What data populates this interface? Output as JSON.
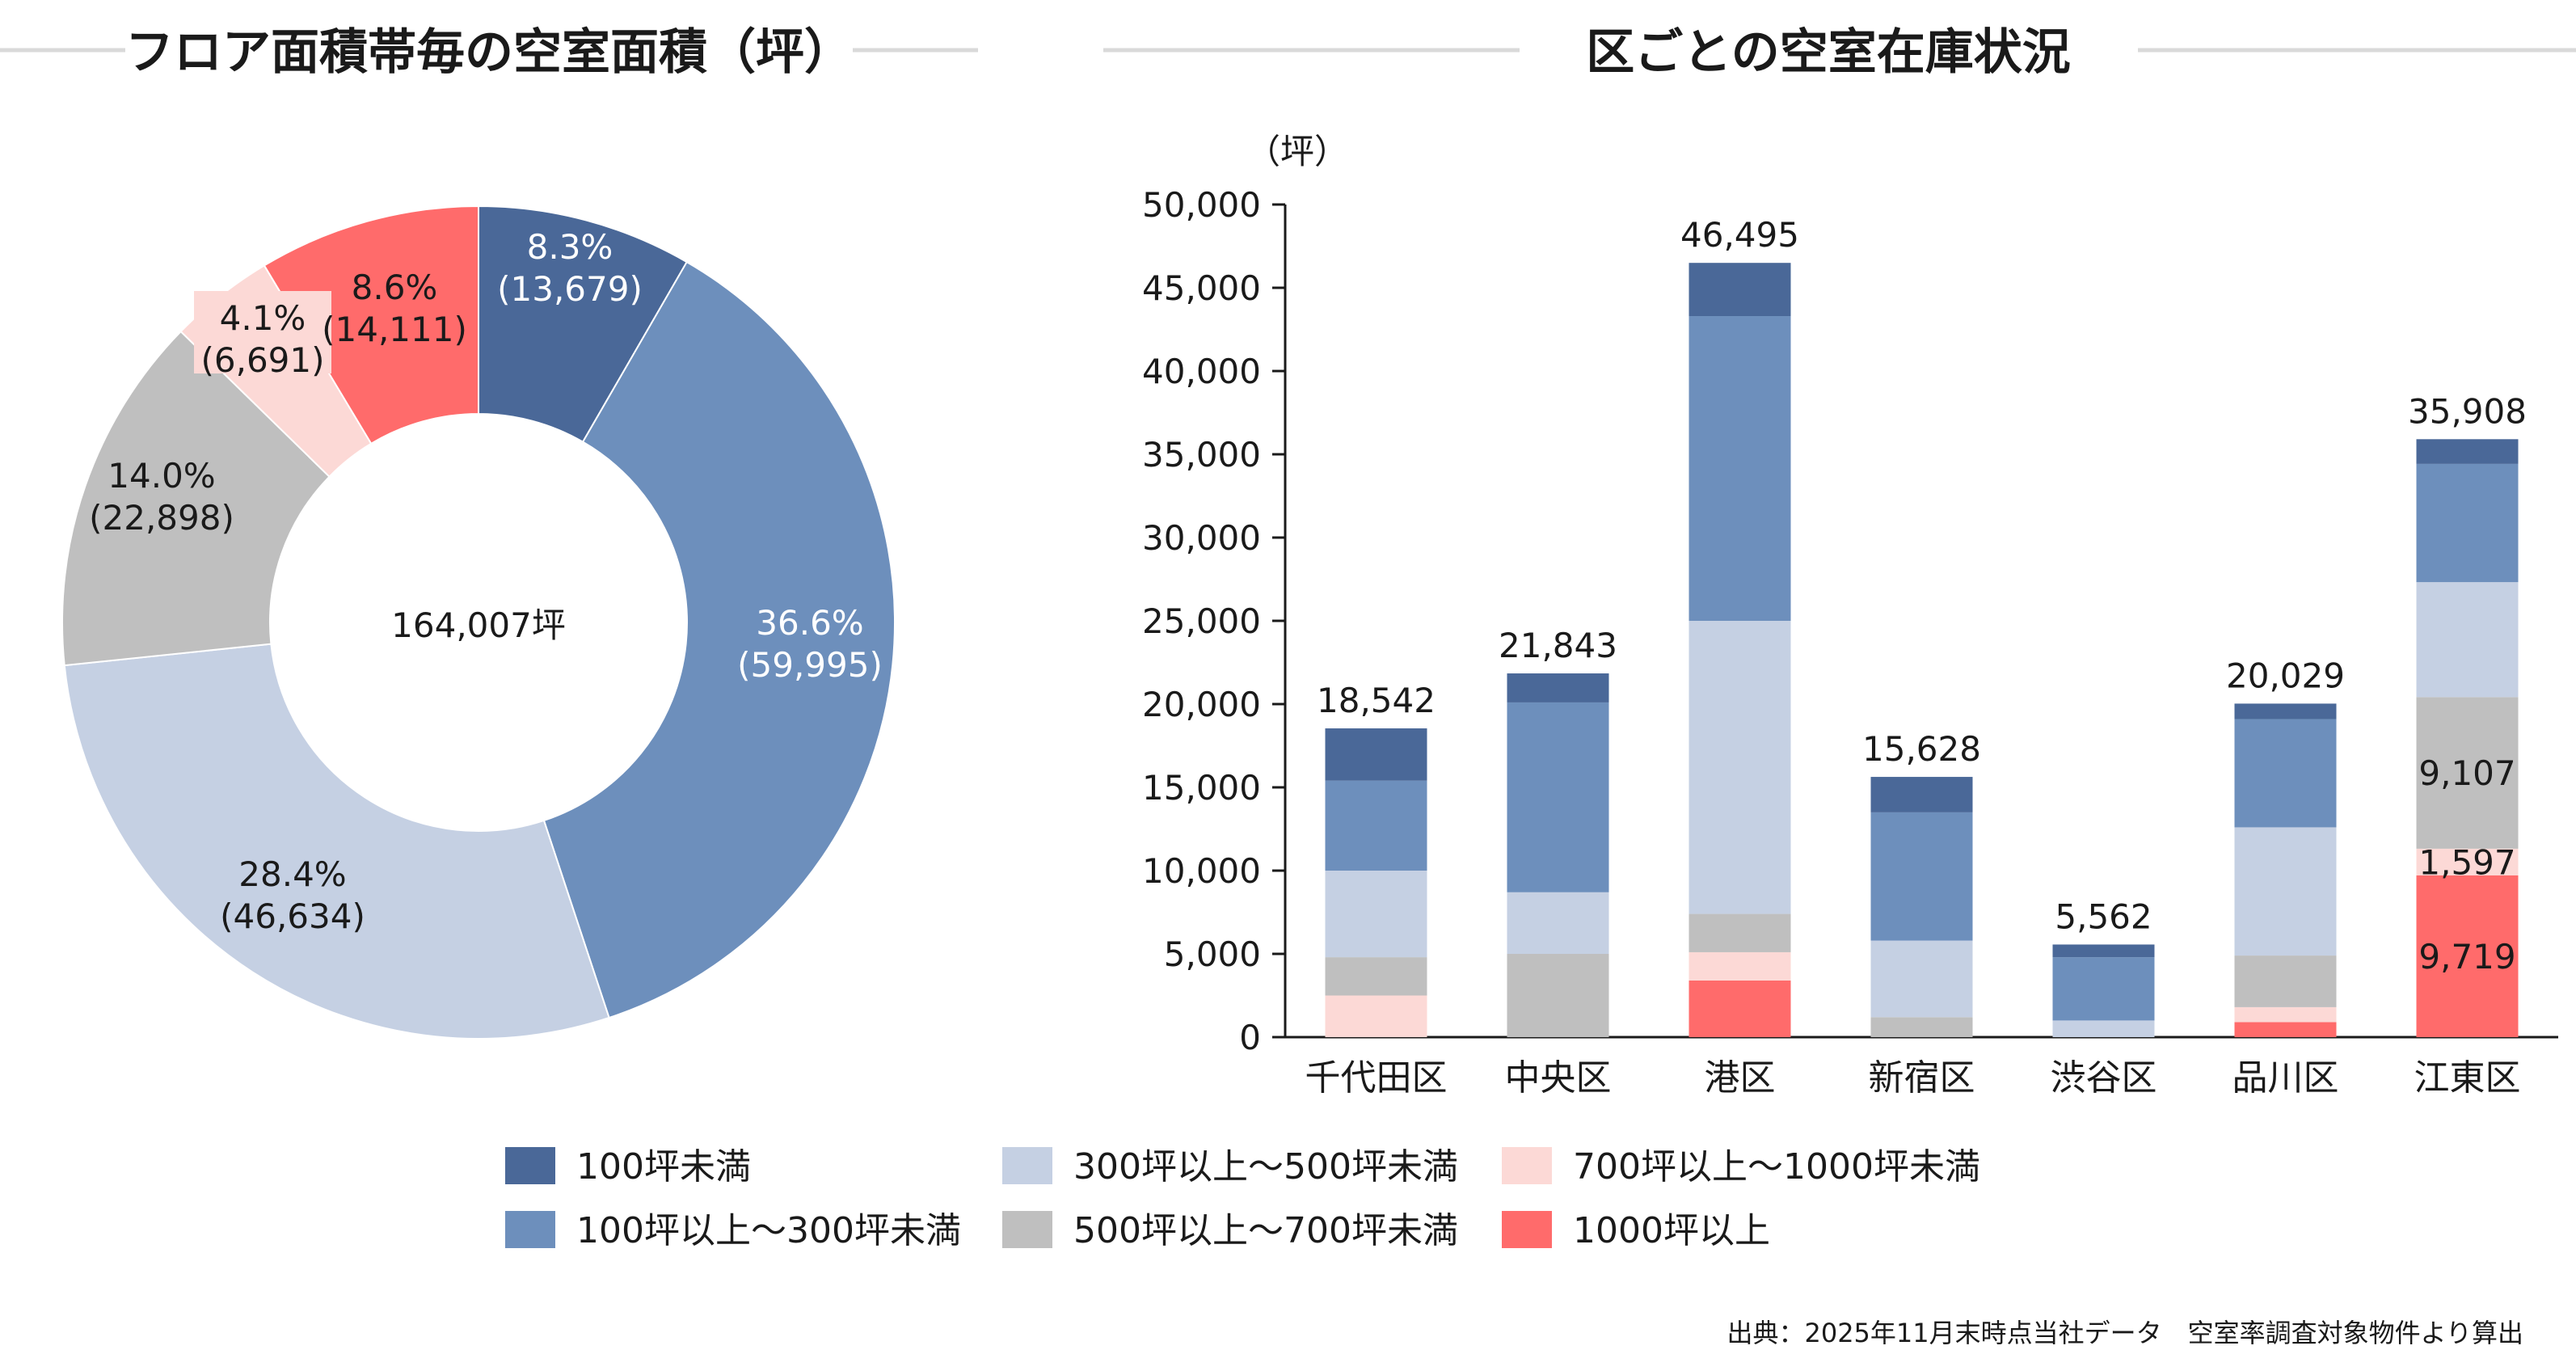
{
  "colors": {
    "lt100": "#4a6898",
    "100to300": "#6d8fbc",
    "300to500": "#c5d0e3",
    "500to700": "#bfbfbf",
    "700to1000": "#fcd9d6",
    "ge1000": "#ff6b6b",
    "rule": "#d9d9d9",
    "axis": "#1a1a1a"
  },
  "donut": {
    "title": "フロア面積帯毎の空室面積（坪）",
    "center_label": "164,007坪",
    "total": 164007,
    "slices": [
      {
        "key": "lt100",
        "pct_label": "8.3%",
        "val_label": "(13,679)",
        "value": 13679,
        "text_color": "#ffffff"
      },
      {
        "key": "100to300",
        "pct_label": "36.6%",
        "val_label": "(59,995)",
        "value": 59995,
        "text_color": "#ffffff"
      },
      {
        "key": "300to500",
        "pct_label": "28.4%",
        "val_label": "(46,634)",
        "value": 46634,
        "text_color": "#1a1a1a"
      },
      {
        "key": "500to700",
        "pct_label": "14.0%",
        "val_label": "(22,898)",
        "value": 22898,
        "text_color": "#1a1a1a"
      },
      {
        "key": "700to1000",
        "pct_label": "4.1%",
        "val_label": "(6,691)",
        "value": 6691,
        "text_color": "#1a1a1a"
      },
      {
        "key": "ge1000",
        "pct_label": "8.6%",
        "val_label": "(14,111)",
        "value": 14111,
        "text_color": "#1a1a1a"
      }
    ]
  },
  "legend": [
    {
      "key": "lt100",
      "label": "100坪未満"
    },
    {
      "key": "100to300",
      "label": "100坪以上～300坪未満"
    },
    {
      "key": "300to500",
      "label": "300坪以上～500坪未満"
    },
    {
      "key": "500to700",
      "label": "500坪以上～700坪未満"
    },
    {
      "key": "700to1000",
      "label": "700坪以上～1000坪未満"
    },
    {
      "key": "ge1000",
      "label": "1000坪以上"
    }
  ],
  "source_note": "出典：2025年11月末時点当社データ　空室率調査対象物件より算出",
  "chart_data": [
    {
      "type": "pie",
      "title": "フロア面積帯毎の空室面積（坪）",
      "center_label": "164,007坪",
      "categories": [
        "100坪未満",
        "100坪以上～300坪未満",
        "300坪以上～500坪未満",
        "500坪以上～700坪未満",
        "700坪以上～1000坪未満",
        "1000坪以上"
      ],
      "values": [
        13679,
        59995,
        46634,
        22898,
        6691,
        14111
      ],
      "percent_labels": [
        "8.3%",
        "36.6%",
        "28.4%",
        "14.0%",
        "4.1%",
        "8.6%"
      ]
    },
    {
      "type": "bar",
      "stacked": true,
      "title": "区ごとの空室在庫状況",
      "ylabel": "（坪）",
      "ylim": [
        0,
        50000
      ],
      "yticks": [
        "0",
        "5,000",
        "10,000",
        "15,000",
        "20,000",
        "25,000",
        "30,000",
        "35,000",
        "40,000",
        "45,000",
        "50,000"
      ],
      "categories": [
        "千代田区",
        "中央区",
        "港区",
        "新宿区",
        "渋谷区",
        "品川区",
        "江東区"
      ],
      "totals": [
        18542,
        21843,
        46495,
        15628,
        5562,
        20029,
        35908
      ],
      "total_labels": [
        "18,542",
        "21,843",
        "46,495",
        "15,628",
        "5,562",
        "20,029",
        "35,908"
      ],
      "series": [
        {
          "key": "ge1000",
          "name": "1000坪以上",
          "values": [
            0,
            0,
            3400,
            0,
            0,
            900,
            9719
          ]
        },
        {
          "key": "700to1000",
          "name": "700坪以上～1000坪未満",
          "values": [
            2500,
            0,
            1700,
            0,
            0,
            900,
            1597
          ]
        },
        {
          "key": "500to700",
          "name": "500坪以上～700坪未満",
          "values": [
            2300,
            5000,
            2300,
            1200,
            0,
            3100,
            9107
          ]
        },
        {
          "key": "300to500",
          "name": "300坪以上～500坪未満",
          "values": [
            5200,
            3700,
            17600,
            4600,
            1000,
            7700,
            6900
          ]
        },
        {
          "key": "100to300",
          "name": "100坪以上～300坪未満",
          "values": [
            5400,
            11400,
            18300,
            7700,
            3800,
            6500,
            7100
          ]
        },
        {
          "key": "lt100",
          "name": "100坪未満",
          "values": [
            3142,
            1743,
            3195,
            2128,
            762,
            929,
            1485
          ]
        }
      ],
      "segment_labels": [
        {
          "category": "江東区",
          "key": "500to700",
          "text": "9,107"
        },
        {
          "category": "江東区",
          "key": "700to1000",
          "text": "1,597"
        },
        {
          "category": "江東区",
          "key": "ge1000",
          "text": "9,719"
        }
      ]
    }
  ]
}
